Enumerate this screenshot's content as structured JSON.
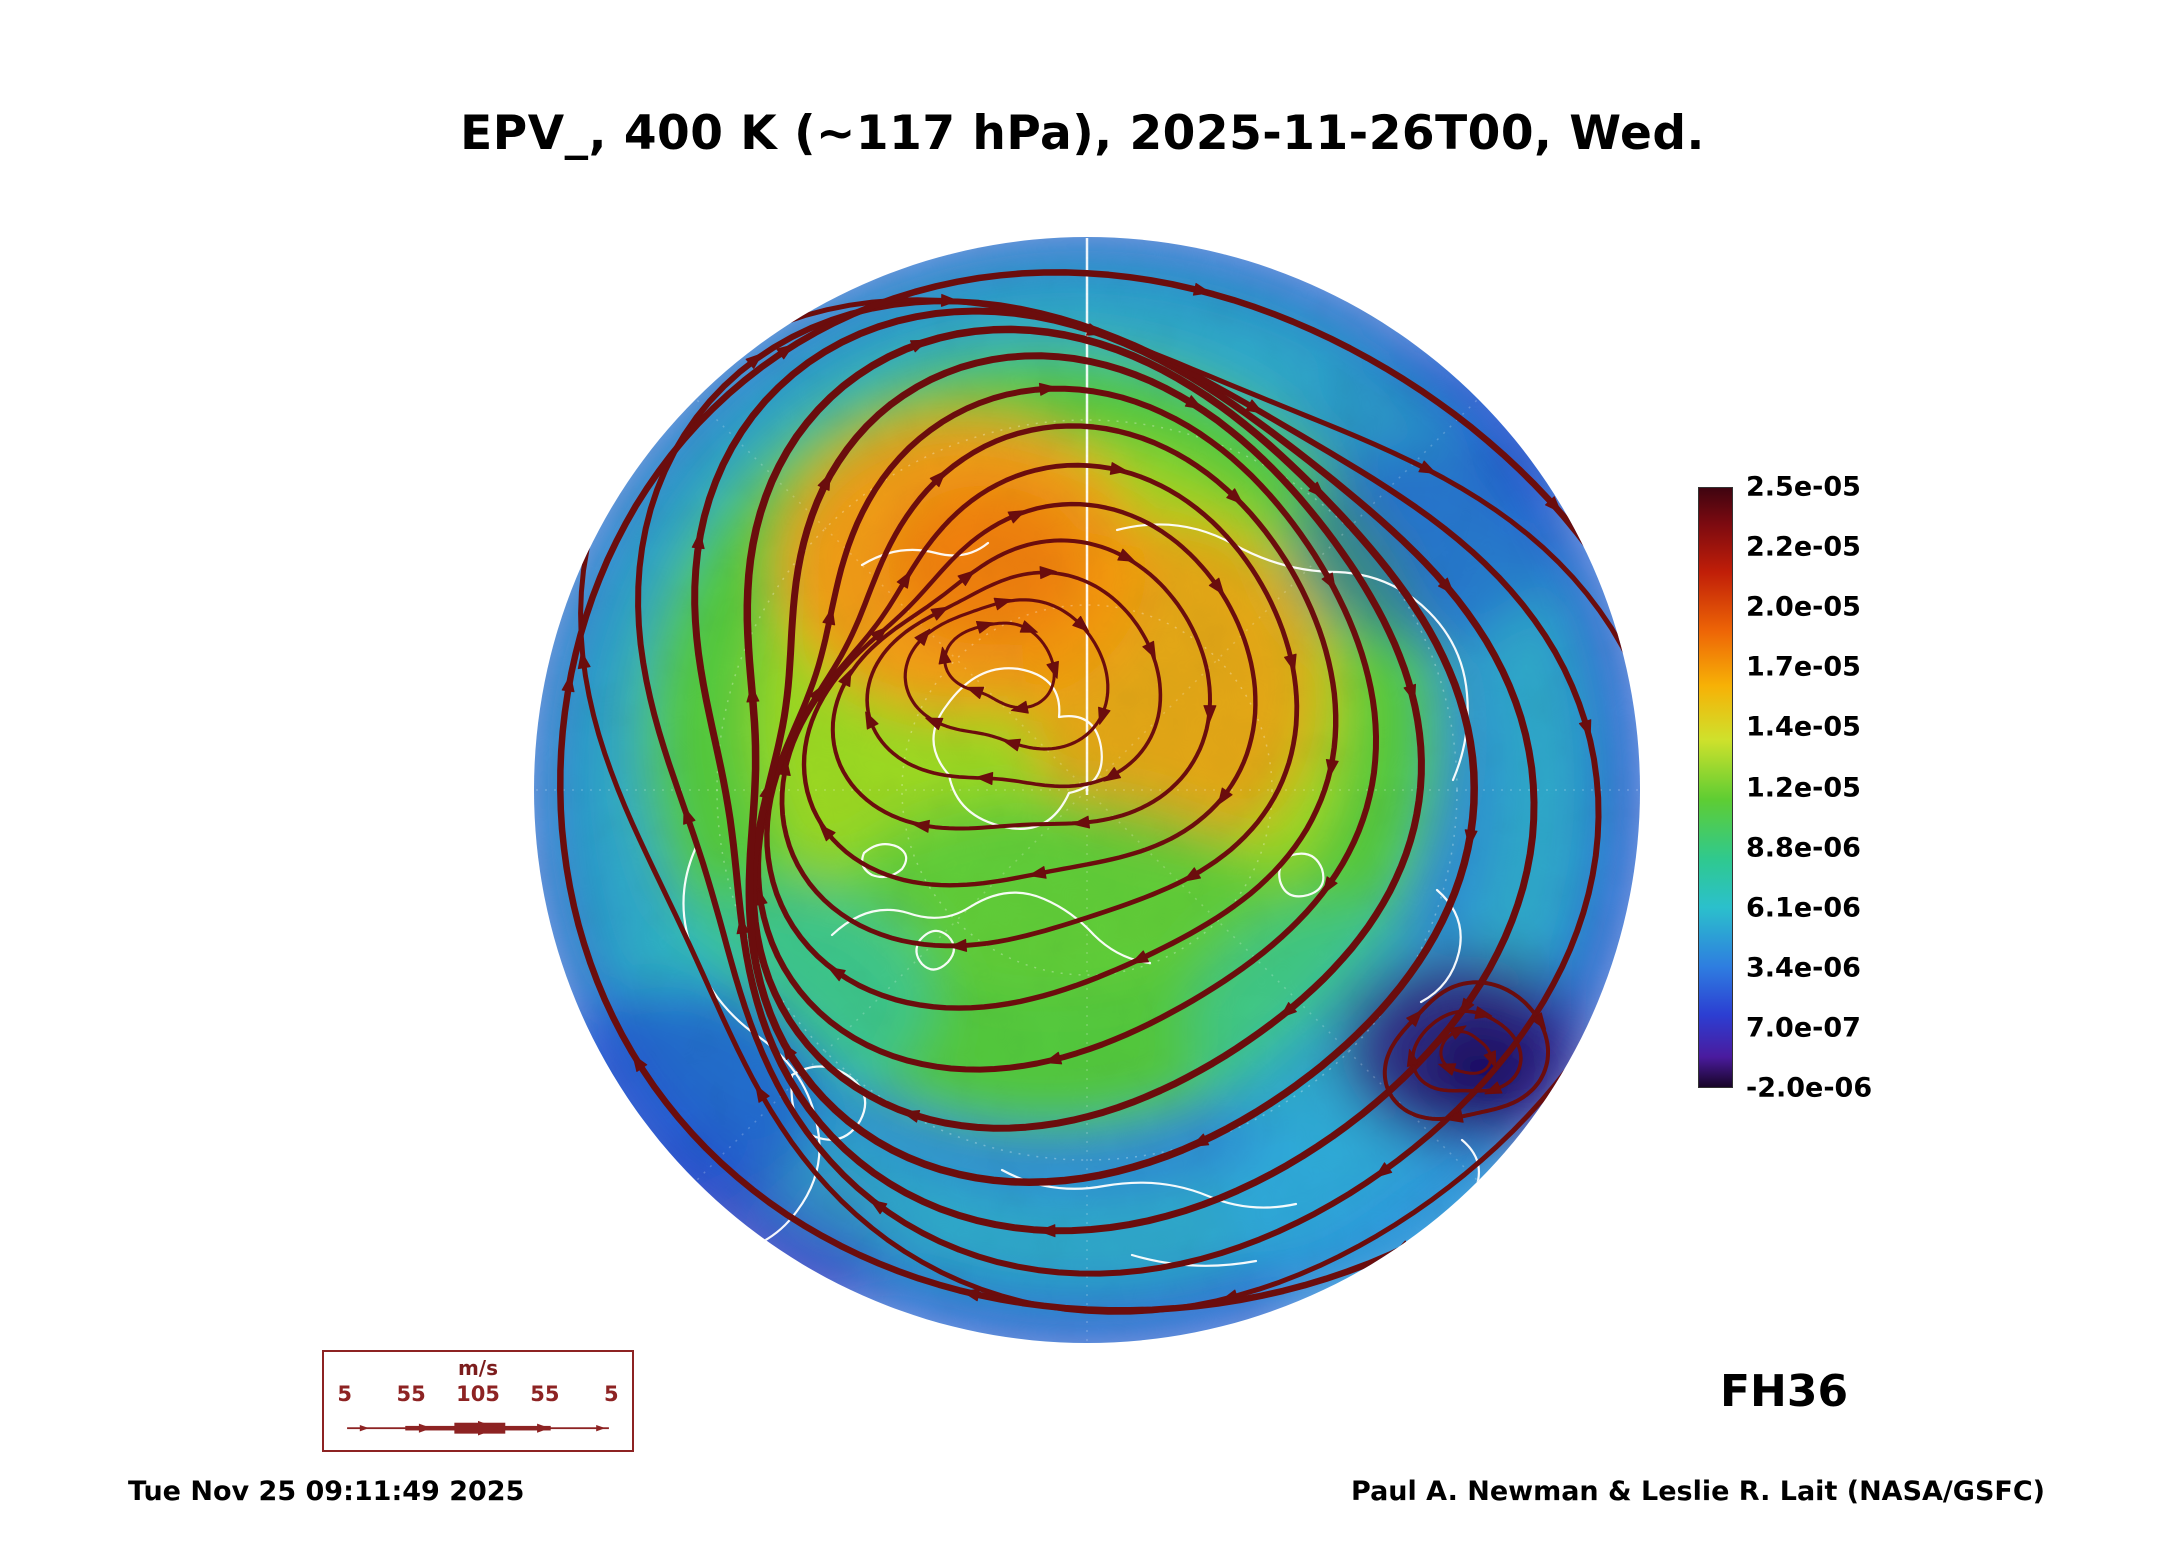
{
  "title": "EPV_, 400 K (~117 hPa), 2025-11-26T00, Wed.",
  "forecast_label": "FH36",
  "timestamp": "Tue Nov 25 09:11:49 2025",
  "credit": "Paul A. Newman & Leslie R. Lait (NASA/GSFC)",
  "wind_legend": {
    "units": "m/s",
    "tick_values": [
      "5",
      "55",
      "105",
      "55",
      "5"
    ],
    "color": "#8d2323"
  },
  "chart_data": {
    "type": "heatmap",
    "title": "EPV_, 400 K (~117 hPa), 2025-11-26T00, Wed.",
    "field": "EPV",
    "level": "400 K (~117 hPa)",
    "valid_time": "2025-11-26T00, Wed.",
    "forecast_hour": 36,
    "projection": "north polar stereographic",
    "colorbar": {
      "tick_labels": [
        "2.5e-05",
        "2.2e-05",
        "2.0e-05",
        "1.7e-05",
        "1.4e-05",
        "1.2e-05",
        "8.8e-06",
        "6.1e-06",
        "3.4e-06",
        "7.0e-07",
        "-2.0e-06"
      ],
      "gradient_stops": [
        {
          "pos": 0.0,
          "color": "#3f0410"
        },
        {
          "pos": 0.06,
          "color": "#7c0a10"
        },
        {
          "pos": 0.14,
          "color": "#c01e08"
        },
        {
          "pos": 0.24,
          "color": "#ee6606"
        },
        {
          "pos": 0.33,
          "color": "#f7b106"
        },
        {
          "pos": 0.42,
          "color": "#cfe12c"
        },
        {
          "pos": 0.52,
          "color": "#5ecd33"
        },
        {
          "pos": 0.62,
          "color": "#2fc98f"
        },
        {
          "pos": 0.7,
          "color": "#2bc0cc"
        },
        {
          "pos": 0.8,
          "color": "#2e7de0"
        },
        {
          "pos": 0.88,
          "color": "#2c3ed2"
        },
        {
          "pos": 0.95,
          "color": "#4a1b9e"
        },
        {
          "pos": 1.0,
          "color": "#180527"
        }
      ]
    },
    "streamlines": {
      "color": "#6b0d0d",
      "count": 13,
      "direction": "cyclonic",
      "arrowheads_per_line": 6
    },
    "coastline_color": "#ffffff",
    "graticule_color": "#ffffff",
    "palette": {
      "ocean_blue": "#2e86d8",
      "deep_blue": "#1f4fd0",
      "cyan": "#2fc4c0",
      "green": "#52c93c",
      "yellow_green": "#a8dc1e",
      "orange": "#f59a12",
      "orange_core": "#f07d07",
      "indigo": "#31197f",
      "indigo_core": "#1e0d5e",
      "violet_rim": "#3b2ec0",
      "sky": "#2fa9e0"
    }
  }
}
